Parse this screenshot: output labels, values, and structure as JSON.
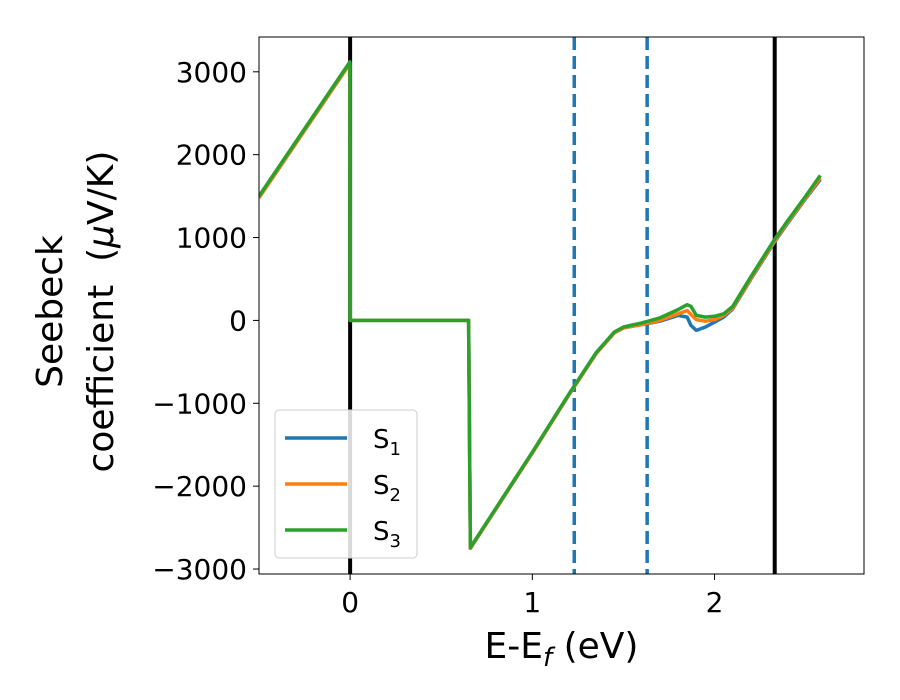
{
  "chart_data": {
    "type": "line",
    "xlabel": {
      "main": "E-E",
      "sub": "f",
      "unit": " (eV)"
    },
    "ylabel": {
      "line1": "Seebeck",
      "line2": "coefficient  (",
      "mu": "μ",
      "unit": "V/K)"
    },
    "xlim": [
      -0.5,
      2.82
    ],
    "ylim": [
      -3060,
      3420
    ],
    "xticks": [
      0,
      1,
      2
    ],
    "xtick_labels": [
      "0",
      "1",
      "2"
    ],
    "yticks": [
      -3000,
      -2000,
      -1000,
      0,
      1000,
      2000,
      3000
    ],
    "ytick_labels": [
      "−3000",
      "−2000",
      "−1000",
      "0",
      "1000",
      "2000",
      "3000"
    ],
    "grid": false,
    "legend_position": "lower-left",
    "vlines": [
      {
        "x": 0.0,
        "style": "solid",
        "color": "#000000"
      },
      {
        "x": 2.33,
        "style": "solid",
        "color": "#000000"
      },
      {
        "x": 1.23,
        "style": "dashed",
        "color": "#1f77b4"
      },
      {
        "x": 1.63,
        "style": "dashed",
        "color": "#1f77b4"
      }
    ],
    "series": [
      {
        "name": "S",
        "sub": "1",
        "color": "#1f77b4",
        "x": [
          -0.5,
          -0.001,
          0.0,
          0.65,
          0.66,
          1.0,
          1.2,
          1.35,
          1.45,
          1.5,
          1.6,
          1.7,
          1.8,
          1.85,
          1.87,
          1.9,
          1.95,
          2.0,
          2.05,
          2.1,
          2.2,
          2.33,
          2.4,
          2.5,
          2.58
        ],
        "y": [
          1480,
          3100,
          0,
          0,
          -2750,
          -1600,
          -900,
          -400,
          -150,
          -90,
          -50,
          -10,
          60,
          40,
          -60,
          -120,
          -80,
          -20,
          40,
          140,
          500,
          950,
          1170,
          1470,
          1700
        ]
      },
      {
        "name": "S",
        "sub": "2",
        "color": "#ff7f0e",
        "x": [
          -0.5,
          -0.001,
          0.0,
          0.65,
          0.66,
          1.0,
          1.2,
          1.35,
          1.45,
          1.5,
          1.6,
          1.7,
          1.8,
          1.85,
          1.87,
          1.9,
          1.95,
          2.0,
          2.05,
          2.1,
          2.2,
          2.33,
          2.4,
          2.5,
          2.58
        ],
        "y": [
          1480,
          3100,
          0,
          0,
          -2750,
          -1600,
          -900,
          -400,
          -150,
          -90,
          -50,
          0,
          80,
          120,
          70,
          10,
          -10,
          10,
          60,
          150,
          510,
          960,
          1180,
          1480,
          1720
        ]
      },
      {
        "name": "S",
        "sub": "3",
        "color": "#2ca02c",
        "x": [
          -0.5,
          -0.001,
          0.0,
          0.65,
          0.66,
          1.0,
          1.2,
          1.35,
          1.45,
          1.5,
          1.6,
          1.7,
          1.8,
          1.85,
          1.87,
          1.9,
          1.95,
          2.0,
          2.05,
          2.1,
          2.2,
          2.33,
          2.4,
          2.5,
          2.58
        ],
        "y": [
          1500,
          3120,
          0,
          0,
          -2740,
          -1590,
          -890,
          -390,
          -140,
          -80,
          -30,
          30,
          130,
          190,
          170,
          60,
          40,
          50,
          80,
          170,
          530,
          980,
          1200,
          1500,
          1750
        ]
      }
    ]
  }
}
